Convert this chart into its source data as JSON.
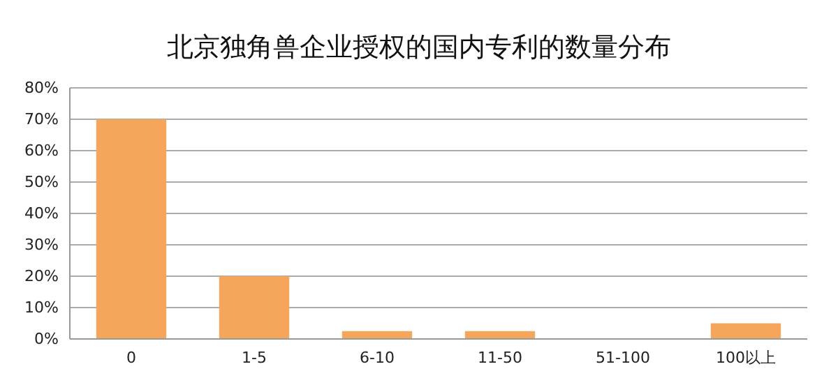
{
  "chart_data": {
    "type": "bar",
    "title": "北京独角兽企业授权的国内专利的数量分布",
    "categories": [
      "0",
      "1-5",
      "6-10",
      "11-50",
      "51-100",
      "100以上"
    ],
    "values": [
      70,
      20,
      2.5,
      2.5,
      0,
      5
    ],
    "color": "#f5a65b",
    "ylim": [
      0,
      80
    ],
    "yticks": [
      {
        "value": 0,
        "label": "0%"
      },
      {
        "value": 10,
        "label": "10%"
      },
      {
        "value": 20,
        "label": "20%"
      },
      {
        "value": 30,
        "label": "30%"
      },
      {
        "value": 40,
        "label": "40%"
      },
      {
        "value": 50,
        "label": "50%"
      },
      {
        "value": 60,
        "label": "60%"
      },
      {
        "value": 70,
        "label": "70%"
      },
      {
        "value": 80,
        "label": "80%"
      }
    ],
    "grid": "y"
  }
}
